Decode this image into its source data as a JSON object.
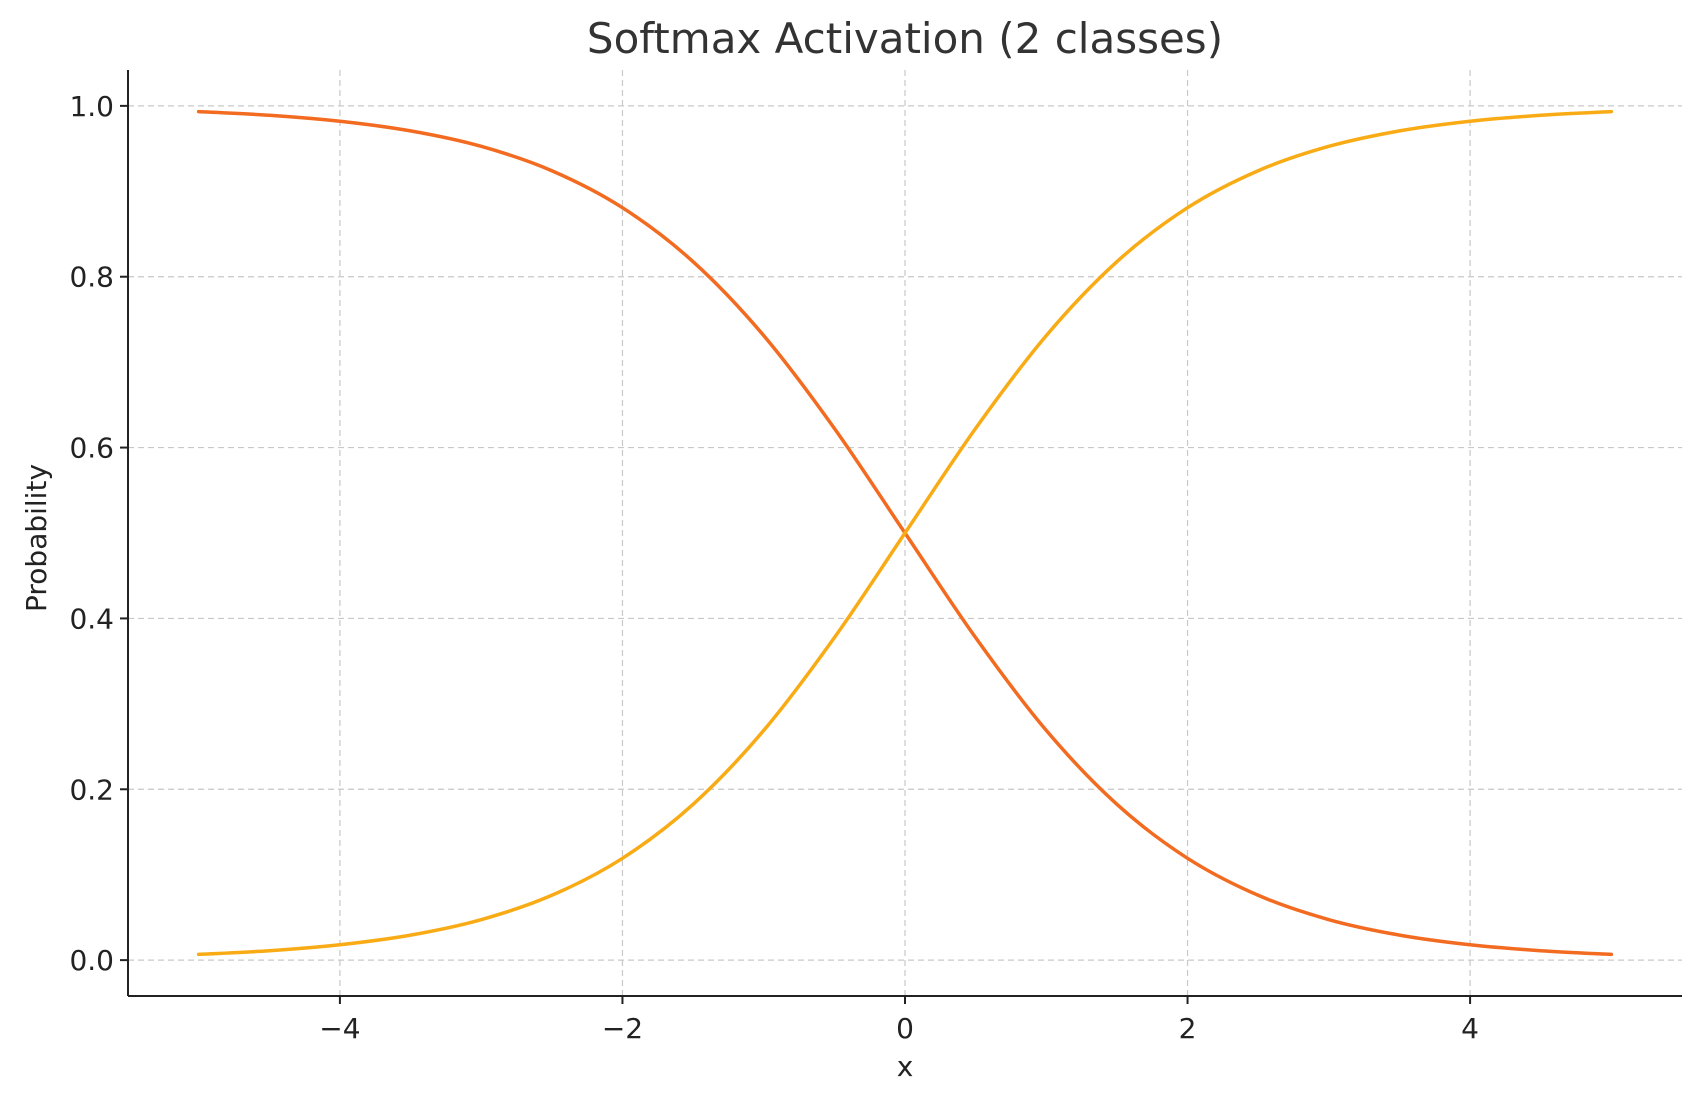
{
  "chart_data": {
    "type": "line",
    "title": "Softmax Activation (2 classes)",
    "xlabel": "x",
    "ylabel": "Probability",
    "xlim": [
      -5.5,
      5.5
    ],
    "ylim": [
      -0.042,
      1.042
    ],
    "x_ticks": [
      -4,
      -2,
      0,
      2,
      4
    ],
    "x_tick_labels": [
      "−4",
      "−2",
      "0",
      "2",
      "4"
    ],
    "y_ticks": [
      0.0,
      0.2,
      0.4,
      0.6,
      0.8,
      1.0
    ],
    "y_tick_labels": [
      "0.0",
      "0.2",
      "0.4",
      "0.6",
      "0.8",
      "1.0"
    ],
    "grid": true,
    "x": [
      -5,
      -4.5,
      -4,
      -3.5,
      -3,
      -2.5,
      -2,
      -1.5,
      -1,
      -0.5,
      0,
      0.5,
      1,
      1.5,
      2,
      2.5,
      3,
      3.5,
      4,
      4.5,
      5
    ],
    "series": [
      {
        "color": "#f26b21",
        "values": [
          0.9933,
          0.989,
          0.982,
          0.9707,
          0.9526,
          0.9241,
          0.8808,
          0.8176,
          0.7311,
          0.6225,
          0.5,
          0.3775,
          0.2689,
          0.1824,
          0.1192,
          0.0759,
          0.0474,
          0.0293,
          0.018,
          0.011,
          0.0067
        ]
      },
      {
        "color": "#f9ab15",
        "values": [
          0.0067,
          0.011,
          0.018,
          0.0293,
          0.0474,
          0.0759,
          0.1192,
          0.1824,
          0.2689,
          0.3775,
          0.5,
          0.6225,
          0.7311,
          0.8176,
          0.8808,
          0.9241,
          0.9526,
          0.9707,
          0.982,
          0.989,
          0.9933
        ]
      }
    ]
  }
}
